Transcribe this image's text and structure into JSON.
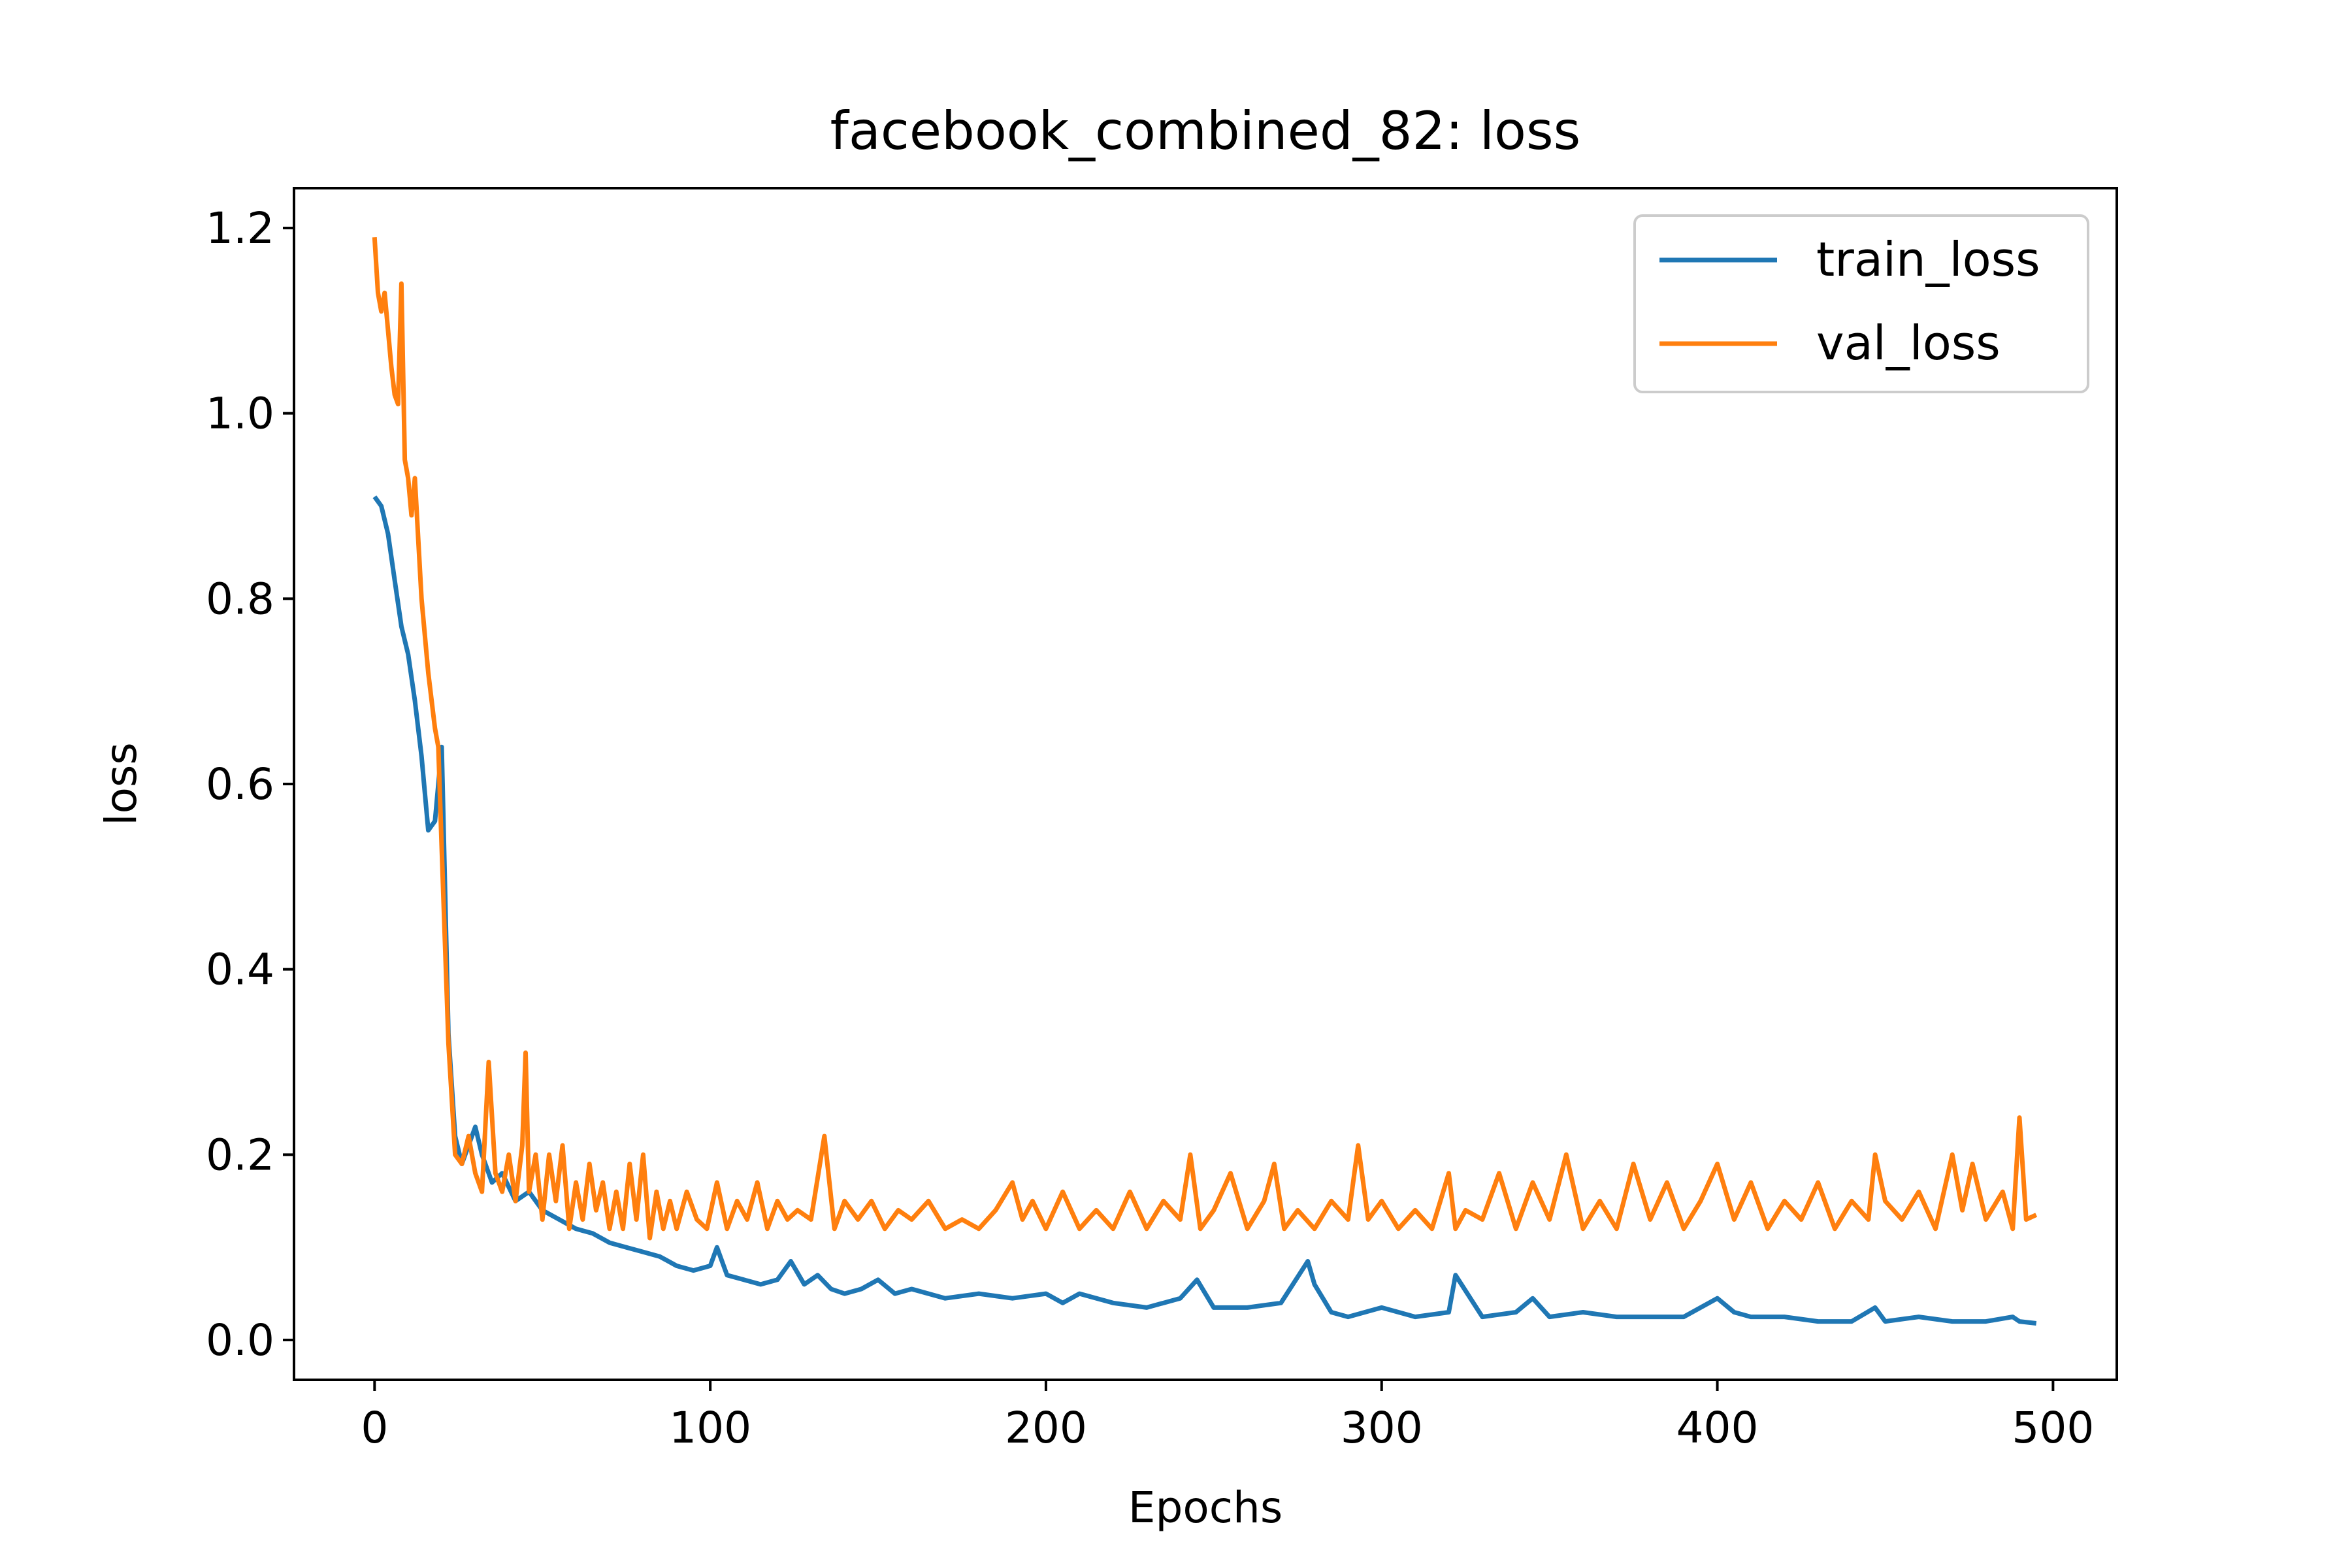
{
  "chart_data": {
    "type": "line",
    "title": "facebook_combined_82: loss",
    "xlabel": "Epochs",
    "ylabel": "loss",
    "xlim": [
      -24,
      519
    ],
    "ylim": [
      -0.043,
      1.243
    ],
    "xticks": [
      0,
      100,
      200,
      300,
      400,
      500
    ],
    "yticks": [
      0.0,
      0.2,
      0.4,
      0.6,
      0.8,
      1.0,
      1.2
    ],
    "xtick_labels": [
      "0",
      "100",
      "200",
      "300",
      "400",
      "500"
    ],
    "ytick_labels": [
      "0.0",
      "0.2",
      "0.4",
      "0.6",
      "0.8",
      "1.0",
      "1.2"
    ],
    "grid": false,
    "legend_position": "top-right",
    "colors": {
      "train_loss": "#1f77b4",
      "val_loss": "#ff7f0e"
    },
    "series": [
      {
        "name": "train_loss",
        "x": [
          0,
          2,
          4,
          6,
          8,
          10,
          12,
          14,
          16,
          18,
          20,
          22,
          24,
          26,
          28,
          30,
          32,
          35,
          38,
          42,
          46,
          50,
          55,
          60,
          65,
          70,
          75,
          80,
          85,
          90,
          95,
          100,
          102,
          105,
          110,
          115,
          120,
          124,
          128,
          132,
          136,
          140,
          145,
          150,
          155,
          160,
          170,
          180,
          190,
          200,
          205,
          210,
          220,
          230,
          240,
          245,
          250,
          260,
          270,
          278,
          280,
          285,
          290,
          300,
          310,
          320,
          322,
          330,
          340,
          345,
          350,
          360,
          370,
          380,
          390,
          400,
          405,
          410,
          420,
          430,
          440,
          447,
          450,
          460,
          470,
          480,
          488,
          490,
          495
        ],
        "y": [
          0.91,
          0.9,
          0.87,
          0.82,
          0.77,
          0.74,
          0.69,
          0.63,
          0.55,
          0.56,
          0.64,
          0.33,
          0.22,
          0.19,
          0.21,
          0.23,
          0.2,
          0.17,
          0.18,
          0.15,
          0.16,
          0.14,
          0.13,
          0.12,
          0.115,
          0.105,
          0.1,
          0.095,
          0.09,
          0.08,
          0.075,
          0.08,
          0.1,
          0.07,
          0.065,
          0.06,
          0.065,
          0.085,
          0.06,
          0.07,
          0.055,
          0.05,
          0.055,
          0.065,
          0.05,
          0.055,
          0.045,
          0.05,
          0.045,
          0.05,
          0.04,
          0.05,
          0.04,
          0.035,
          0.045,
          0.065,
          0.035,
          0.035,
          0.04,
          0.085,
          0.06,
          0.03,
          0.025,
          0.035,
          0.025,
          0.03,
          0.07,
          0.025,
          0.03,
          0.045,
          0.025,
          0.03,
          0.025,
          0.025,
          0.025,
          0.045,
          0.03,
          0.025,
          0.025,
          0.02,
          0.02,
          0.035,
          0.02,
          0.025,
          0.02,
          0.02,
          0.025,
          0.02,
          0.018
        ]
      },
      {
        "name": "val_loss",
        "x": [
          0,
          1,
          2,
          3,
          4,
          5,
          6,
          7,
          8,
          9,
          10,
          11,
          12,
          14,
          16,
          18,
          19,
          20,
          22,
          24,
          26,
          28,
          30,
          32,
          34,
          36,
          38,
          40,
          42,
          44,
          45,
          46,
          48,
          50,
          52,
          54,
          56,
          58,
          60,
          62,
          64,
          66,
          68,
          70,
          72,
          74,
          76,
          78,
          80,
          82,
          84,
          86,
          88,
          90,
          93,
          96,
          99,
          102,
          105,
          108,
          111,
          114,
          117,
          120,
          123,
          126,
          130,
          134,
          137,
          140,
          144,
          148,
          152,
          156,
          160,
          165,
          170,
          175,
          180,
          185,
          190,
          193,
          196,
          200,
          205,
          210,
          215,
          220,
          225,
          230,
          235,
          240,
          243,
          246,
          250,
          255,
          260,
          265,
          268,
          271,
          275,
          280,
          285,
          290,
          293,
          296,
          300,
          305,
          310,
          315,
          320,
          322,
          325,
          330,
          335,
          340,
          345,
          350,
          355,
          360,
          365,
          370,
          375,
          380,
          385,
          390,
          395,
          400,
          405,
          410,
          415,
          420,
          425,
          430,
          435,
          440,
          445,
          447,
          450,
          455,
          460,
          465,
          470,
          473,
          476,
          480,
          485,
          488,
          490,
          492,
          495
        ],
        "y": [
          1.19,
          1.13,
          1.11,
          1.13,
          1.09,
          1.05,
          1.02,
          1.01,
          1.14,
          0.95,
          0.93,
          0.89,
          0.93,
          0.8,
          0.72,
          0.66,
          0.64,
          0.53,
          0.32,
          0.2,
          0.19,
          0.22,
          0.18,
          0.16,
          0.3,
          0.18,
          0.16,
          0.2,
          0.15,
          0.21,
          0.31,
          0.16,
          0.2,
          0.13,
          0.2,
          0.15,
          0.21,
          0.12,
          0.17,
          0.13,
          0.19,
          0.14,
          0.17,
          0.12,
          0.16,
          0.12,
          0.19,
          0.13,
          0.2,
          0.11,
          0.16,
          0.12,
          0.15,
          0.12,
          0.16,
          0.13,
          0.12,
          0.17,
          0.12,
          0.15,
          0.13,
          0.17,
          0.12,
          0.15,
          0.13,
          0.14,
          0.13,
          0.22,
          0.12,
          0.15,
          0.13,
          0.15,
          0.12,
          0.14,
          0.13,
          0.15,
          0.12,
          0.13,
          0.12,
          0.14,
          0.17,
          0.13,
          0.15,
          0.12,
          0.16,
          0.12,
          0.14,
          0.12,
          0.16,
          0.12,
          0.15,
          0.13,
          0.2,
          0.12,
          0.14,
          0.18,
          0.12,
          0.15,
          0.19,
          0.12,
          0.14,
          0.12,
          0.15,
          0.13,
          0.21,
          0.13,
          0.15,
          0.12,
          0.14,
          0.12,
          0.18,
          0.12,
          0.14,
          0.13,
          0.18,
          0.12,
          0.17,
          0.13,
          0.2,
          0.12,
          0.15,
          0.12,
          0.19,
          0.13,
          0.17,
          0.12,
          0.15,
          0.19,
          0.13,
          0.17,
          0.12,
          0.15,
          0.13,
          0.17,
          0.12,
          0.15,
          0.13,
          0.2,
          0.15,
          0.13,
          0.16,
          0.12,
          0.2,
          0.14,
          0.19,
          0.13,
          0.16,
          0.12,
          0.24,
          0.13,
          0.135
        ]
      }
    ]
  }
}
